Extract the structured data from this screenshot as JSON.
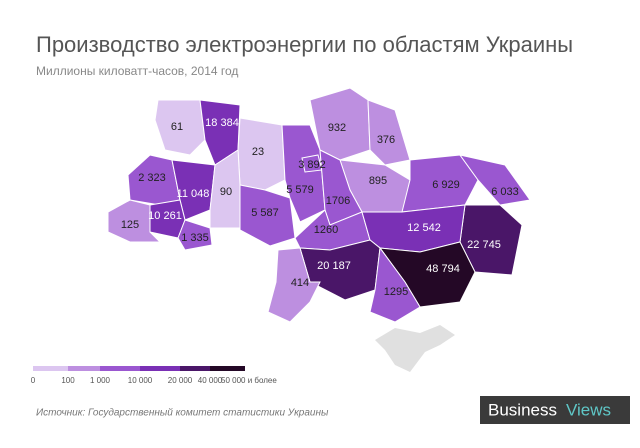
{
  "header": {
    "title": "Производство электроэнергии по областям Украины",
    "subtitle": "Миллионы киловатт-часов, 2014 год"
  },
  "map": {
    "regions": [
      {
        "value": 61,
        "label": "61"
      },
      {
        "value": 18384,
        "label": "18 384"
      },
      {
        "value": 23,
        "label": "23"
      },
      {
        "value": 2323,
        "label": "2 323"
      },
      {
        "value": 11048,
        "label": "11 048"
      },
      {
        "value": 90,
        "label": "90"
      },
      {
        "value": 10261,
        "label": "10 261"
      },
      {
        "value": 125,
        "label": "125"
      },
      {
        "value": 1335,
        "label": "1 335"
      },
      {
        "value": 5587,
        "label": "5 587"
      },
      {
        "value": 5579,
        "label": "5 579"
      },
      {
        "value": 3892,
        "label": "3 892"
      },
      {
        "value": 932,
        "label": "932"
      },
      {
        "value": 376,
        "label": "376"
      },
      {
        "value": 895,
        "label": "895"
      },
      {
        "value": 1706,
        "label": "1706"
      },
      {
        "value": 6929,
        "label": "6 929"
      },
      {
        "value": 6033,
        "label": "6 033"
      },
      {
        "value": 22745,
        "label": "22 745"
      },
      {
        "value": 1260,
        "label": "1260"
      },
      {
        "value": 12542,
        "label": "12 542"
      },
      {
        "value": 48794,
        "label": "48 794"
      },
      {
        "value": 20187,
        "label": "20 187"
      },
      {
        "value": 1295,
        "label": "1295"
      },
      {
        "value": 414,
        "label": "414"
      }
    ],
    "legend": {
      "colors": [
        "#dcc6f0",
        "#bd8fe0",
        "#9a57d0",
        "#7a30b5",
        "#4a1668",
        "#240826"
      ],
      "ticks": [
        0,
        100,
        {
          "value": 1000,
          "label": "1 000"
        },
        {
          "value": 10000,
          "label": "10 000"
        },
        {
          "value": 20000,
          "label": "20 000"
        },
        {
          "value": 40000,
          "label": "40 000"
        },
        {
          "value": 50000,
          "label": "50 000 и более"
        }
      ]
    }
  },
  "footer": {
    "source": "Источник:  Государственный комитет статистики Украины",
    "logo": [
      "Business",
      "Views"
    ]
  }
}
